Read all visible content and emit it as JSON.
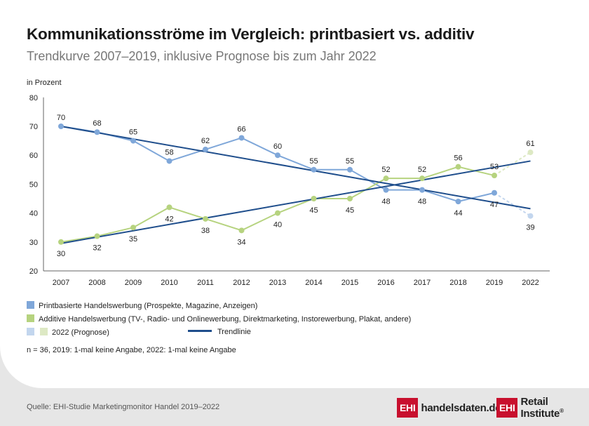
{
  "title": "Kommunikationsströme im Vergleich: printbasiert vs. additiv",
  "subtitle": "Trendkurve 2007–2019, inklusive Prognose bis zum Jahr 2022",
  "unit_label": "in Prozent",
  "legend": {
    "print": "Printbasierte Handelswerbung (Prospekte, Magazine, Anzeigen)",
    "additive": "Additive Handelswerbung (TV-, Radio- und Onlinewerbung, Direktmarketing, Instorewerbung, Plakat, andere)",
    "forecast": "2022 (Prognose)",
    "trend": "Trendlinie"
  },
  "note": "n = 36, 2019: 1-mal keine Angabe, 2022: 1-mal keine Angabe",
  "source": "Quelle: EHI-Studie Marketingmonitor Handel 2019–2022",
  "logos": {
    "logo1_box": "EHI",
    "logo1_text": "handelsdaten.de",
    "logo2_box": "EHI",
    "logo2_text": "Retail Institute",
    "logo2_reg": "®"
  },
  "colors": {
    "print": "#7fa7d9",
    "print_forecast": "#c3d6ee",
    "additive": "#b6d37f",
    "additive_forecast": "#dde9c4",
    "trend": "#1f4e8c",
    "axis": "#666666"
  },
  "chart_data": {
    "type": "line",
    "categories": [
      "2007",
      "2008",
      "2009",
      "2010",
      "2011",
      "2012",
      "2013",
      "2014",
      "2015",
      "2016",
      "2017",
      "2018",
      "2019",
      "2022"
    ],
    "ylim": [
      20,
      80
    ],
    "yticks": [
      20,
      30,
      40,
      50,
      60,
      70,
      80
    ],
    "ylabel": "in Prozent",
    "grid": false,
    "series": [
      {
        "name": "Printbasierte Handelswerbung (Prospekte, Magazine, Anzeigen)",
        "values": [
          70,
          68,
          65,
          58,
          62,
          66,
          60,
          55,
          55,
          48,
          48,
          44,
          47,
          39
        ]
      },
      {
        "name": "Additive Handelswerbung (TV-, Radio- und Onlinewerbung, Direktmarketing, Instorewerbung, Plakat, andere)",
        "values": [
          30,
          32,
          35,
          42,
          38,
          34,
          40,
          45,
          45,
          52,
          52,
          56,
          53,
          61
        ]
      }
    ],
    "forecast_category": "2022",
    "trendlines": [
      {
        "name": "Trendlinie",
        "from": {
          "x": "2007",
          "y": 70
        },
        "to": {
          "x": "2022",
          "y": 41.5
        }
      },
      {
        "name": "Trendlinie",
        "from": {
          "x": "2007",
          "y": 29.5
        },
        "to": {
          "x": "2022",
          "y": 58
        }
      }
    ]
  }
}
